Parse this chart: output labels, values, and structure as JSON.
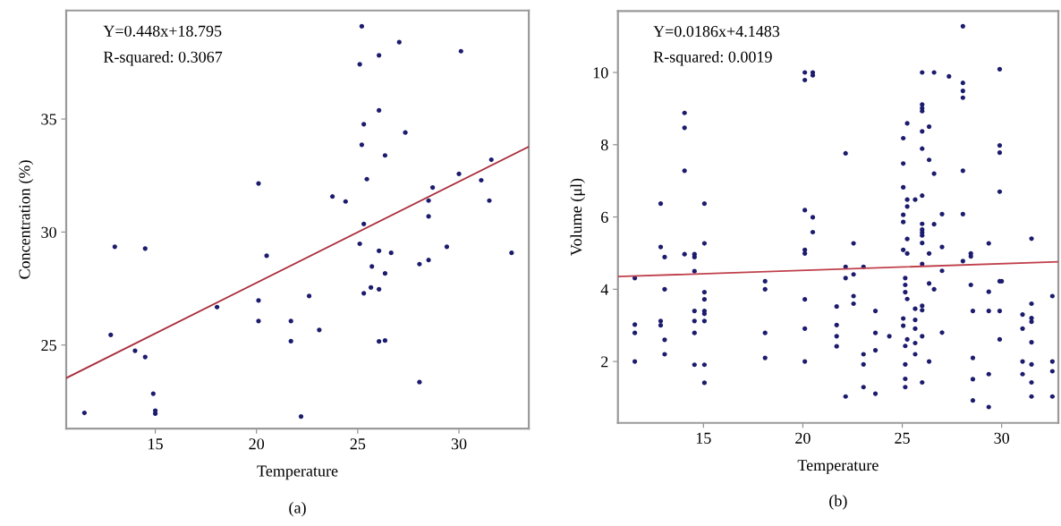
{
  "chart_data": [
    {
      "type": "scatter",
      "xlabel": "Temperature",
      "ylabel": "Concentration (%)",
      "annotations": [
        "Y=0.448x+18.795",
        "R-squared: 0.3067",
        "(a)"
      ],
      "xlim": [
        10.6,
        33.45
      ],
      "ylim": [
        21.3,
        39.8
      ],
      "xticks": [
        15,
        20,
        25,
        30
      ],
      "yticks": [
        25,
        30,
        35
      ],
      "grid": false,
      "legend": false,
      "marker": "circle",
      "series": [
        {
          "color": "#1c1c6e",
          "x": [
            11.5,
            13.0,
            14.5,
            12.8,
            14.0,
            14.5,
            14.9,
            15.0,
            15.0,
            18.05,
            20.1,
            20.5,
            20.1,
            20.1,
            21.7,
            21.7,
            22.6,
            23.1,
            22.2,
            25.2,
            27.05,
            30.1,
            26.05,
            25.1,
            26.05,
            25.3,
            27.35,
            25.2,
            26.35,
            31.6,
            30.0,
            31.1,
            25.45,
            28.7,
            23.75,
            24.4,
            28.5,
            31.5,
            28.5,
            25.3,
            25.1,
            29.4,
            26.05,
            26.65,
            32.6,
            25.7,
            26.35,
            28.05,
            28.5,
            25.65,
            25.3,
            26.05,
            26.05,
            26.35,
            28.05
          ],
          "values": [
            22.0,
            29.35,
            29.27,
            25.45,
            24.75,
            24.47,
            22.85,
            22.1,
            21.97,
            26.68,
            32.15,
            28.95,
            26.97,
            26.06,
            26.06,
            25.17,
            27.17,
            25.67,
            21.84,
            39.1,
            38.4,
            38.0,
            37.82,
            37.42,
            35.38,
            34.77,
            34.4,
            33.86,
            33.39,
            33.2,
            32.57,
            32.29,
            32.34,
            31.97,
            31.57,
            31.35,
            31.39,
            31.39,
            30.69,
            30.36,
            29.48,
            29.35,
            29.17,
            29.08,
            29.08,
            28.48,
            28.17,
            28.58,
            28.76,
            27.55,
            27.29,
            27.47,
            25.16,
            25.2,
            23.36
          ]
        },
        {
          "type": "line",
          "color": "#a8303c",
          "marker": "none",
          "line_style": "solid",
          "x": [
            10.6,
            33.45
          ],
          "values": [
            23.54,
            33.78
          ]
        }
      ]
    },
    {
      "type": "scatter",
      "xlabel": "Temperature",
      "ylabel": "Volume (μl)",
      "annotations": [
        "Y=0.0186x+4.1483",
        "R-squared: 0.0019",
        "(b)"
      ],
      "xlim": [
        10.7,
        32.85
      ],
      "ylim": [
        0.3,
        11.7
      ],
      "xticks": [
        15,
        20,
        25,
        30
      ],
      "yticks": [
        2,
        4,
        6,
        8,
        10
      ],
      "grid": false,
      "legend": false,
      "marker": "circle",
      "series": [
        {
          "color": "#1c1c6e",
          "x": [
            11.55,
            11.55,
            11.55,
            11.55,
            12.85,
            12.85,
            12.85,
            12.85,
            13.05,
            13.05,
            13.05,
            13.05,
            14.05,
            14.05,
            14.05,
            14.05,
            14.55,
            14.55,
            14.55,
            14.55,
            14.55,
            14.55,
            14.55,
            15.05,
            15.05,
            15.05,
            15.05,
            15.05,
            15.05,
            15.05,
            15.05,
            15.05,
            18.1,
            18.1,
            18.1,
            18.1,
            20.1,
            20.1,
            20.1,
            20.1,
            20.1,
            20.1,
            20.1,
            20.1,
            20.5,
            20.5,
            20.5,
            20.5,
            22.15,
            22.15,
            22.15,
            22.15,
            22.55,
            22.55,
            22.55,
            22.55,
            21.7,
            21.7,
            21.7,
            21.7,
            23.05,
            23.05,
            23.05,
            23.05,
            23.65,
            23.65,
            23.65,
            23.65,
            24.35,
            25.05,
            25.05,
            25.05,
            25.05,
            25.05,
            25.05,
            25.05,
            25.05,
            25.15,
            25.15,
            25.15,
            25.15,
            25.15,
            25.15,
            25.15,
            25.25,
            25.25,
            25.25,
            25.25,
            25.25,
            25.25,
            25.25,
            25.65,
            25.65,
            25.65,
            25.65,
            25.65,
            25.65,
            26.0,
            26.0,
            26.0,
            26.0,
            26.0,
            26.0,
            26.0,
            26.0,
            26.0,
            26.0,
            26.0,
            26.0,
            26.0,
            26.0,
            26.0,
            26.0,
            26.0,
            26.35,
            26.35,
            26.35,
            26.35,
            26.35,
            26.6,
            26.6,
            26.6,
            26.6,
            27.0,
            27.0,
            27.0,
            27.0,
            27.35,
            28.05,
            28.05,
            28.05,
            28.05,
            28.05,
            28.05,
            28.05,
            28.45,
            28.45,
            28.45,
            28.55,
            28.55,
            28.55,
            28.55,
            29.35,
            29.35,
            29.35,
            29.35,
            29.35,
            29.9,
            29.9,
            29.9,
            29.9,
            29.9,
            30.0,
            29.9,
            29.9,
            31.05,
            31.05,
            31.05,
            31.05,
            31.5,
            31.5,
            31.5,
            31.5,
            31.5,
            31.5,
            31.5,
            31.5,
            32.55,
            32.55,
            32.55,
            32.55
          ],
          "values": [
            4.31,
            3.02,
            2.79,
            2.0,
            6.37,
            5.17,
            3.12,
            3.0,
            4.89,
            4.0,
            2.6,
            2.2,
            8.88,
            8.47,
            7.28,
            4.97,
            4.97,
            4.89,
            4.5,
            3.4,
            3.12,
            2.79,
            1.91,
            6.37,
            5.27,
            3.92,
            3.72,
            3.4,
            3.32,
            3.12,
            1.91,
            1.41,
            4.22,
            4.0,
            2.79,
            2.1,
            10.0,
            9.79,
            6.19,
            5.09,
            4.99,
            3.72,
            2.91,
            2.0,
            10.0,
            9.92,
            5.99,
            5.58,
            7.76,
            4.62,
            4.31,
            1.03,
            5.27,
            4.41,
            3.81,
            3.6,
            3.52,
            3.01,
            2.7,
            2.42,
            4.62,
            2.2,
            1.92,
            1.29,
            3.4,
            2.79,
            2.31,
            1.11,
            2.7,
            8.18,
            7.48,
            6.82,
            6.06,
            5.86,
            5.09,
            3.19,
            2.99,
            4.31,
            4.12,
            3.92,
            2.43,
            1.92,
            1.52,
            1.29,
            8.59,
            6.48,
            6.29,
            5.39,
            4.99,
            3.73,
            2.61,
            6.48,
            3.46,
            3.15,
            2.91,
            2.51,
            2.2,
            10.0,
            9.11,
            9.01,
            8.93,
            8.37,
            7.89,
            6.59,
            5.81,
            5.65,
            5.57,
            5.49,
            5.28,
            4.7,
            3.54,
            3.42,
            2.7,
            1.42,
            8.5,
            7.58,
            4.99,
            4.16,
            2.0,
            10.0,
            7.2,
            5.8,
            4.0,
            6.08,
            5.17,
            4.51,
            2.8,
            9.89,
            11.28,
            9.71,
            9.49,
            9.3,
            7.28,
            6.08,
            4.78,
            4.99,
            4.91,
            4.12,
            3.4,
            2.1,
            1.51,
            0.92,
            5.27,
            3.93,
            3.4,
            1.65,
            0.74,
            10.09,
            7.98,
            7.78,
            6.7,
            4.22,
            4.22,
            3.4,
            2.61,
            3.3,
            2.91,
            2.0,
            1.65,
            5.4,
            3.6,
            3.2,
            3.1,
            2.53,
            1.92,
            1.42,
            1.03,
            3.81,
            2.0,
            1.73,
            1.03
          ]
        },
        {
          "type": "line",
          "color": "#c0404c",
          "marker": "none",
          "line_style": "solid",
          "x": [
            10.7,
            32.85
          ],
          "values": [
            4.35,
            4.76
          ]
        }
      ]
    }
  ]
}
